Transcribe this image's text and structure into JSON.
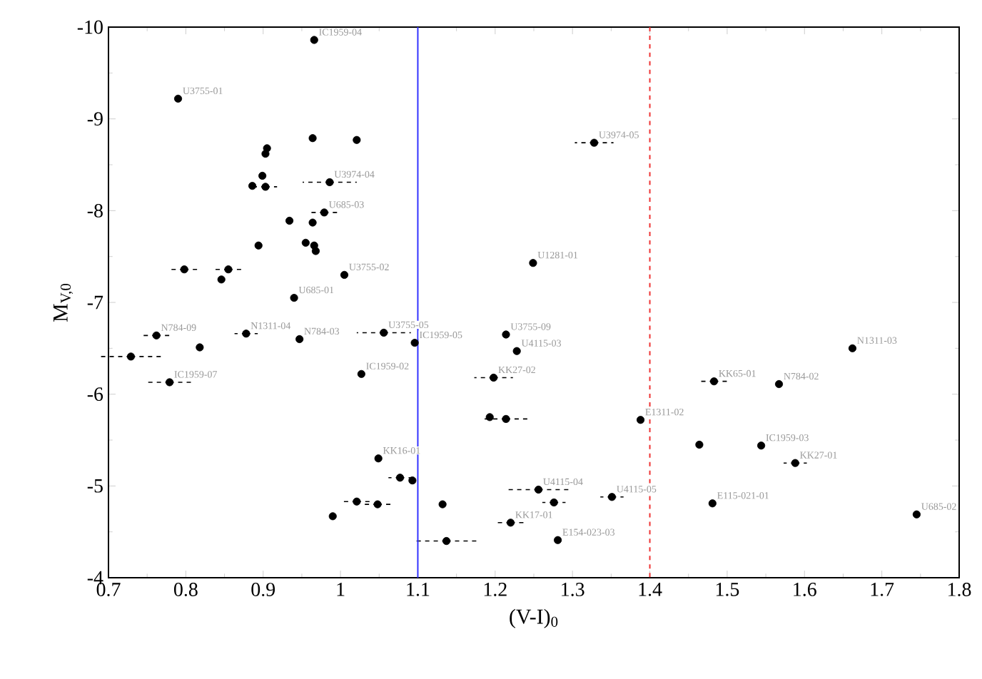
{
  "chart_data": {
    "type": "scatter",
    "xlabel": "(V-I)$_{0}$",
    "ylabel": "M$_{V,0}$",
    "xlim": [
      0.7,
      1.8
    ],
    "ylim": [
      -4,
      -10
    ],
    "xticks": [
      0.7,
      0.8,
      0.9,
      1,
      1.1,
      1.2,
      1.3,
      1.4,
      1.5,
      1.6,
      1.7,
      1.8
    ],
    "yticks": [
      -10,
      -9,
      -8,
      -7,
      -6,
      -5,
      -4
    ],
    "marker": "circle",
    "grid": false,
    "series": [
      {
        "color": "#000000",
        "x": [
          0.966,
          0.79,
          0.964,
          1.021,
          0.905,
          0.903,
          0.886,
          0.903,
          0.899,
          0.986,
          0.979,
          0.934,
          0.964,
          0.955,
          0.966,
          0.968,
          0.894,
          0.798,
          0.855,
          0.846,
          1.005,
          1.249,
          1.328,
          0.94,
          0.762,
          0.818,
          0.729,
          0.779,
          0.878,
          0.947,
          1.056,
          1.027,
          1.049,
          1.021,
          1.048,
          0.99,
          1.077,
          1.093,
          1.096,
          1.214,
          1.228,
          1.198,
          1.193,
          1.214,
          1.132,
          1.256,
          1.276,
          1.351,
          1.22,
          1.137,
          1.281,
          1.388,
          1.662,
          1.483,
          1.567,
          1.464,
          1.544,
          1.588,
          1.481,
          1.745
        ],
        "values": [
          -9.86,
          -9.22,
          -8.79,
          -8.77,
          -8.68,
          -8.62,
          -8.27,
          -8.26,
          -8.38,
          -8.31,
          -7.98,
          -7.89,
          -7.87,
          -7.65,
          -7.62,
          -7.56,
          -7.62,
          -7.36,
          -7.36,
          -7.25,
          -7.3,
          -7.43,
          -8.74,
          -7.05,
          -6.64,
          -6.51,
          -6.41,
          -6.13,
          -6.66,
          -6.6,
          -6.67,
          -6.22,
          -5.3,
          -4.83,
          -4.8,
          -4.67,
          -5.09,
          -5.06,
          -6.56,
          -6.65,
          -6.47,
          -6.18,
          -5.75,
          -5.73,
          -4.8,
          -4.96,
          -4.82,
          -4.88,
          -4.6,
          -4.4,
          -4.41,
          -5.72,
          -6.5,
          -6.14,
          -6.11,
          -5.45,
          -5.44,
          -5.25,
          -4.81,
          -4.69
        ],
        "xerrors": [
          null,
          null,
          null,
          null,
          null,
          null,
          null,
          0.015,
          null,
          0.035,
          0.02,
          null,
          null,
          null,
          null,
          null,
          null,
          0.02,
          0.02,
          null,
          null,
          null,
          0.025,
          null,
          0.02,
          null,
          0.04,
          0.03,
          0.015,
          null,
          0.035,
          null,
          null,
          0.02,
          0.02,
          null,
          0.015,
          null,
          null,
          null,
          null,
          0.025,
          null,
          0.03,
          null,
          0.04,
          0.015,
          0.015,
          0.02,
          0.04,
          null,
          null,
          null,
          0.02,
          null,
          null,
          null,
          0.015,
          null,
          null
        ]
      }
    ],
    "ref_lines": [
      {
        "axis": "x",
        "value": 1.1,
        "color": "#3333ff",
        "line_style": "solid"
      },
      {
        "axis": "x",
        "value": 1.4,
        "color": "#ee3333",
        "line_style": "dashed"
      }
    ],
    "annotations": [
      {
        "text": "IC1959-04",
        "x": 0.966,
        "y": -9.86
      },
      {
        "text": "U3755-01",
        "x": 0.79,
        "y": -9.22
      },
      {
        "text": "U3974-04",
        "x": 0.986,
        "y": -8.31
      },
      {
        "text": "U685-03",
        "x": 0.979,
        "y": -7.98
      },
      {
        "text": "U3974-05",
        "x": 1.328,
        "y": -8.74
      },
      {
        "text": "U1281-01",
        "x": 1.249,
        "y": -7.43
      },
      {
        "text": "U3755-02",
        "x": 1.005,
        "y": -7.3
      },
      {
        "text": "U685-01",
        "x": 0.94,
        "y": -7.05
      },
      {
        "text": "N784-09",
        "x": 0.762,
        "y": -6.64
      },
      {
        "text": "N1311-04",
        "x": 0.878,
        "y": -6.66
      },
      {
        "text": "N784-03",
        "x": 0.947,
        "y": -6.6
      },
      {
        "text": "U3755-05",
        "x": 1.056,
        "y": -6.67
      },
      {
        "text": "IC1959-07",
        "x": 0.779,
        "y": -6.13
      },
      {
        "text": "IC1959-02",
        "x": 1.027,
        "y": -6.22
      },
      {
        "text": "IC1959-05",
        "x": 1.096,
        "y": -6.56
      },
      {
        "text": "U3755-09",
        "x": 1.214,
        "y": -6.65
      },
      {
        "text": "U4115-03",
        "x": 1.228,
        "y": -6.47
      },
      {
        "text": "KK27-02",
        "x": 1.198,
        "y": -6.18
      },
      {
        "text": "KK16-01",
        "x": 1.049,
        "y": -5.3
      },
      {
        "text": "U4115-04",
        "x": 1.256,
        "y": -4.96
      },
      {
        "text": "U4115-05",
        "x": 1.351,
        "y": -4.88
      },
      {
        "text": "KK17-01",
        "x": 1.22,
        "y": -4.6
      },
      {
        "text": "E154-023-03",
        "x": 1.281,
        "y": -4.41
      },
      {
        "text": "E1311-02",
        "x": 1.388,
        "y": -5.72
      },
      {
        "text": "N1311-03",
        "x": 1.662,
        "y": -6.5
      },
      {
        "text": "KK65-01",
        "x": 1.483,
        "y": -6.14
      },
      {
        "text": "N784-02",
        "x": 1.567,
        "y": -6.11
      },
      {
        "text": "IC1959-03",
        "x": 1.544,
        "y": -5.44
      },
      {
        "text": "KK27-01",
        "x": 1.588,
        "y": -5.25
      },
      {
        "text": "E115-021-01",
        "x": 1.481,
        "y": -4.81
      },
      {
        "text": "U685-02",
        "x": 1.745,
        "y": -4.69
      }
    ]
  }
}
